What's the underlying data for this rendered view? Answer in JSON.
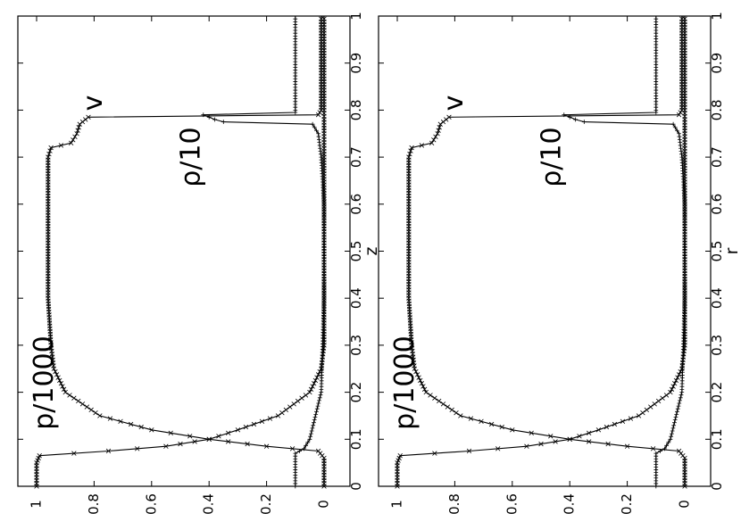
{
  "chart_data": [
    {
      "type": "line",
      "xlabel": "z",
      "ylabel": "",
      "xlim": [
        0,
        1
      ],
      "ylim": [
        0,
        1
      ],
      "xticks": [
        "0",
        "0.1",
        "0.2",
        "0.3",
        "0.4",
        "0.5",
        "0.6",
        "0.7",
        "0.8",
        "0.9",
        "1"
      ],
      "yticks": [
        "0",
        "0.2",
        "0.4",
        "0.6",
        "0.8",
        "1"
      ],
      "annotations": [
        "p/1000",
        "v",
        "ρ/10"
      ],
      "series": [
        {
          "name": "p/1000",
          "x": [
            0,
            0.05,
            0.065,
            0.075,
            0.085,
            0.1,
            0.12,
            0.15,
            0.2,
            0.25,
            0.3,
            0.4,
            0.5,
            0.6,
            0.7,
            0.72,
            0.73,
            0.75,
            0.77,
            0.785,
            0.79,
            0.8,
            1
          ],
          "y": [
            1,
            1,
            0.99,
            0.75,
            0.55,
            0.4,
            0.6,
            0.78,
            0.9,
            0.94,
            0.95,
            0.96,
            0.96,
            0.96,
            0.96,
            0.95,
            0.88,
            0.86,
            0.85,
            0.82,
            0.02,
            0.01,
            0.01
          ]
        },
        {
          "name": "v",
          "x": [
            0,
            0.06,
            0.075,
            0.085,
            0.1,
            0.12,
            0.15,
            0.2,
            0.25,
            0.3,
            0.4,
            0.5,
            0.6,
            0.7,
            0.75,
            0.78,
            0.8,
            1
          ],
          "y": [
            0,
            0,
            0.02,
            0.2,
            0.4,
            0.3,
            0.16,
            0.05,
            0.01,
            0,
            0,
            0,
            0,
            0,
            0,
            0,
            0,
            0
          ]
        },
        {
          "name": "ρ/10",
          "x": [
            0,
            0.07,
            0.08,
            0.1,
            0.2,
            0.4,
            0.6,
            0.7,
            0.75,
            0.77,
            0.775,
            0.78,
            0.79,
            0.795,
            0.8,
            1
          ],
          "y": [
            0.1,
            0.1,
            0.07,
            0.05,
            0.01,
            0,
            0,
            0.01,
            0.02,
            0.04,
            0.35,
            0.38,
            0.42,
            0.1,
            0.1,
            0.1
          ]
        }
      ]
    },
    {
      "type": "line",
      "xlabel": "r",
      "ylabel": "",
      "xlim": [
        0,
        1
      ],
      "ylim": [
        0,
        1
      ],
      "xticks": [
        "0",
        "0.1",
        "0.2",
        "0.3",
        "0.4",
        "0.5",
        "0.6",
        "0.7",
        "0.8",
        "0.9",
        "1"
      ],
      "yticks": [
        "0",
        "0.2",
        "0.4",
        "0.6",
        "0.8",
        "1"
      ],
      "annotations": [
        "p/1000",
        "v",
        "ρ/10"
      ],
      "series": [
        {
          "name": "p/1000",
          "x": [
            0,
            0.05,
            0.065,
            0.075,
            0.085,
            0.1,
            0.12,
            0.15,
            0.2,
            0.25,
            0.3,
            0.4,
            0.5,
            0.6,
            0.7,
            0.72,
            0.73,
            0.75,
            0.77,
            0.785,
            0.79,
            0.8,
            1
          ],
          "y": [
            1,
            1,
            0.99,
            0.75,
            0.55,
            0.4,
            0.6,
            0.78,
            0.9,
            0.94,
            0.95,
            0.96,
            0.96,
            0.96,
            0.96,
            0.95,
            0.88,
            0.86,
            0.85,
            0.82,
            0.02,
            0.01,
            0.01
          ]
        },
        {
          "name": "v",
          "x": [
            0,
            0.06,
            0.075,
            0.085,
            0.1,
            0.12,
            0.15,
            0.2,
            0.25,
            0.3,
            0.4,
            0.5,
            0.6,
            0.7,
            0.75,
            0.78,
            0.8,
            1
          ],
          "y": [
            0,
            0,
            0.02,
            0.2,
            0.4,
            0.3,
            0.16,
            0.05,
            0.01,
            0,
            0,
            0,
            0,
            0,
            0,
            0,
            0,
            0
          ]
        },
        {
          "name": "ρ/10",
          "x": [
            0,
            0.07,
            0.08,
            0.1,
            0.2,
            0.4,
            0.6,
            0.7,
            0.75,
            0.77,
            0.775,
            0.78,
            0.79,
            0.795,
            0.8,
            1
          ],
          "y": [
            0.1,
            0.1,
            0.07,
            0.05,
            0.01,
            0,
            0,
            0.01,
            0.02,
            0.04,
            0.35,
            0.38,
            0.42,
            0.1,
            0.1,
            0.1
          ]
        }
      ]
    }
  ]
}
